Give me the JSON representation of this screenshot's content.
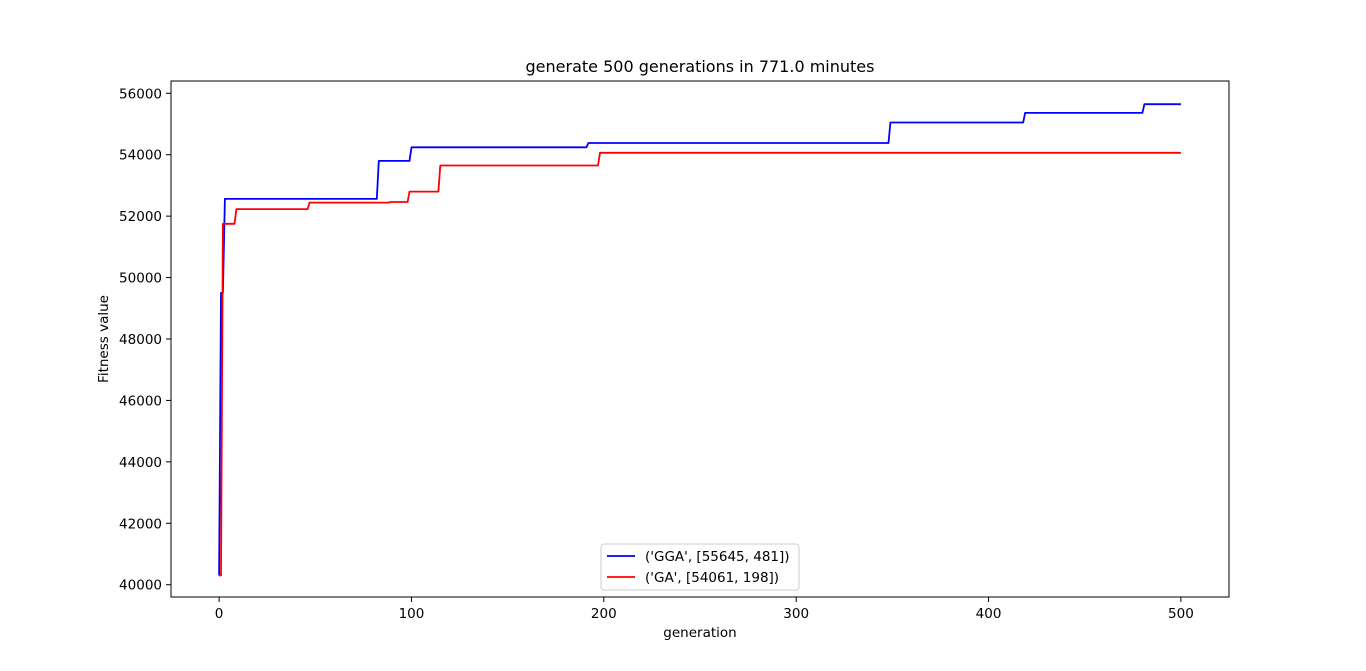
{
  "chart_data": {
    "type": "line",
    "title": "generate 500 generations in 771.0 minutes",
    "xlabel": "generation",
    "ylabel": "Fitness value",
    "xlim": [
      -25,
      525
    ],
    "ylim": [
      39600,
      56400
    ],
    "xticks": [
      0,
      100,
      200,
      300,
      400,
      500
    ],
    "yticks": [
      40000,
      42000,
      44000,
      46000,
      48000,
      50000,
      52000,
      54000,
      56000
    ],
    "grid": false,
    "legend_position": "lower center",
    "series": [
      {
        "name": "('GGA', [55645, 481])",
        "color": "#0000ff",
        "x": [
          0,
          1,
          2,
          3,
          82,
          83,
          99,
          100,
          191,
          192,
          348,
          349,
          418,
          419,
          480,
          481,
          500
        ],
        "y": [
          40300,
          49500,
          49500,
          52560,
          52560,
          53800,
          53800,
          54240,
          54240,
          54380,
          54380,
          55050,
          55050,
          55360,
          55360,
          55645,
          55645
        ]
      },
      {
        "name": "('GA', [54061, 198])",
        "color": "#ff0000",
        "x": [
          0,
          1,
          2,
          8,
          9,
          46,
          47,
          88,
          89,
          98,
          99,
          114,
          115,
          197,
          198,
          500
        ],
        "y": [
          40300,
          40300,
          51750,
          51750,
          52230,
          52230,
          52440,
          52440,
          52460,
          52460,
          52800,
          52800,
          53650,
          53650,
          54061,
          54061
        ]
      }
    ]
  }
}
